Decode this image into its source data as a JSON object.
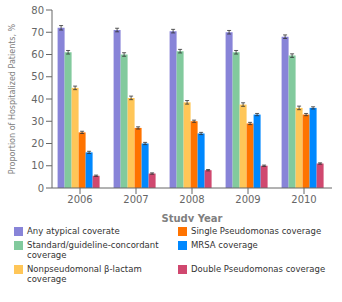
{
  "chart_data": {
    "type": "bar",
    "categories": [
      "2006",
      "2007",
      "2008",
      "2009",
      "2010"
    ],
    "series": [
      {
        "name": "Any atypical coverate",
        "values": [
          72,
          71,
          70.5,
          70,
          68
        ],
        "errors": [
          1.0,
          0.8,
          0.8,
          0.8,
          0.8
        ]
      },
      {
        "name": "Standard/guideline-concordant coverage",
        "values": [
          61,
          60,
          61.5,
          61,
          59.5
        ],
        "errors": [
          0.8,
          0.8,
          0.8,
          0.8,
          0.8
        ]
      },
      {
        "name": "Nonpseudomonal β-lactam coverage",
        "values": [
          45,
          40.5,
          38.5,
          37.5,
          36
        ],
        "errors": [
          0.8,
          0.8,
          0.8,
          0.8,
          0.8
        ]
      },
      {
        "name": "Single Pseudomonas coverage",
        "values": [
          25,
          27,
          30,
          29,
          33
        ],
        "errors": [
          0.5,
          0.5,
          0.5,
          0.5,
          0.5
        ]
      },
      {
        "name": "MRSA coverage",
        "values": [
          16,
          20,
          24.5,
          33,
          36
        ],
        "errors": [
          0.5,
          0.5,
          0.5,
          0.5,
          0.5
        ]
      },
      {
        "name": "Double Pseudomonas coverage",
        "values": [
          5.5,
          6.5,
          8,
          10,
          11
        ],
        "errors": [
          0.3,
          0.3,
          0.3,
          0.3,
          0.3
        ]
      }
    ],
    "xlabel": "Study Year",
    "ylabel": "Proportion of Hospitalized Patients, %",
    "ylim": [
      0,
      80
    ],
    "yticks": [
      0,
      10,
      20,
      30,
      40,
      50,
      60,
      70,
      80
    ],
    "grid": false,
    "legend": "bottom"
  }
}
